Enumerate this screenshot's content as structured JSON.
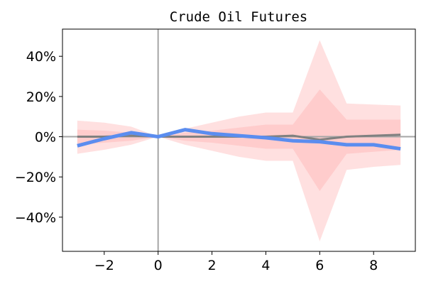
{
  "chart_data": {
    "type": "line",
    "title": "Crude Oil Futures",
    "xlabel": "",
    "ylabel": "",
    "xlim": [
      -3.55,
      9.55
    ],
    "ylim": [
      -0.57,
      0.535
    ],
    "x_ticks": [
      -2,
      0,
      2,
      4,
      6,
      8
    ],
    "x_tick_labels": [
      "−2",
      "0",
      "2",
      "4",
      "6",
      "8"
    ],
    "y_ticks": [
      -0.4,
      -0.2,
      0.0,
      0.2,
      0.4
    ],
    "y_tick_labels": [
      "−40%",
      "−20%",
      "0%",
      "20%",
      "40%"
    ],
    "grid": false,
    "reference_lines": {
      "x": 0,
      "y": 0
    },
    "x": [
      -3,
      -2,
      -1,
      0,
      1,
      2,
      3,
      4,
      5,
      6,
      7,
      8,
      9
    ],
    "series": [
      {
        "type": "line",
        "values": [
          -0.045,
          -0.01,
          0.02,
          0.0,
          0.035,
          0.015,
          0.005,
          -0.005,
          -0.02,
          -0.025,
          -0.04,
          -0.04,
          -0.06
        ],
        "color": "#5b8def"
      },
      {
        "type": "line",
        "values": [
          0.0,
          0.0,
          0.005,
          0.0,
          0.0,
          0.0,
          0.0,
          0.0,
          0.005,
          -0.015,
          0.0,
          0.005,
          0.01
        ],
        "color": "#808080"
      }
    ],
    "bands": [
      {
        "kind": "outer",
        "upper": [
          0.08,
          0.07,
          0.05,
          0.0,
          0.04,
          0.07,
          0.1,
          0.12,
          0.12,
          0.48,
          0.165,
          0.16,
          0.155
        ],
        "lower": [
          -0.085,
          -0.065,
          -0.04,
          0.0,
          -0.04,
          -0.07,
          -0.1,
          -0.12,
          -0.12,
          -0.52,
          -0.165,
          -0.15,
          -0.14
        ],
        "color": "#ffcccc"
      },
      {
        "kind": "inner",
        "upper": [
          0.035,
          0.03,
          0.02,
          0.0,
          0.02,
          0.03,
          0.045,
          0.06,
          0.06,
          0.235,
          0.085,
          0.085,
          0.085
        ],
        "lower": [
          -0.04,
          -0.03,
          -0.02,
          0.0,
          -0.02,
          -0.03,
          -0.045,
          -0.06,
          -0.06,
          -0.27,
          -0.085,
          -0.075,
          -0.065
        ],
        "color": "#ffbbbb"
      }
    ],
    "colors": {
      "reference_line": "#a6a6a6",
      "axes": "#000000"
    }
  }
}
